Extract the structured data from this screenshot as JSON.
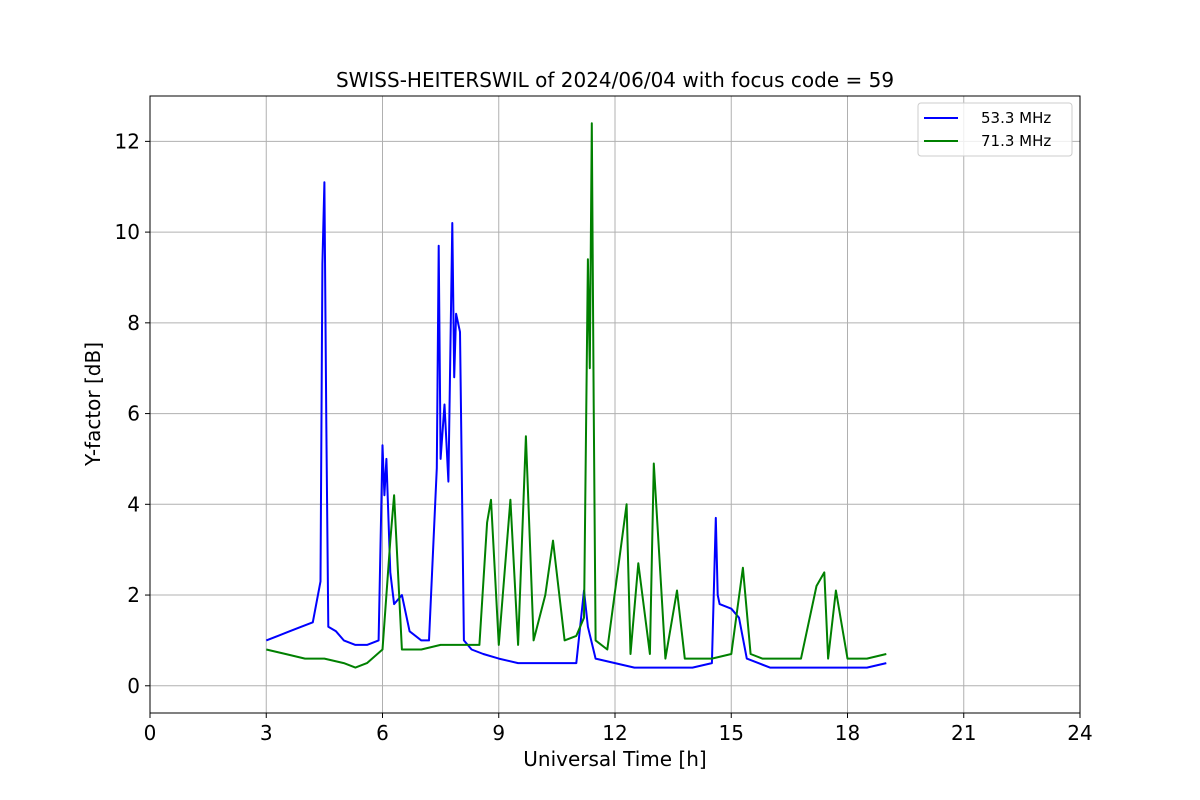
{
  "chart_data": {
    "type": "line",
    "title": "SWISS-HEITERSWIL of 2024/06/04 with focus code = 59",
    "xlabel": "Universal Time [h]",
    "ylabel": "Y-factor [dB]",
    "xlim": [
      0,
      24
    ],
    "ylim": [
      -0.6,
      13
    ],
    "xticks": [
      "0",
      "3",
      "6",
      "9",
      "12",
      "15",
      "18",
      "21",
      "24"
    ],
    "yticks": [
      "0",
      "2",
      "4",
      "6",
      "8",
      "10",
      "12"
    ],
    "grid": true,
    "legend_position": "top-right",
    "series": [
      {
        "name": "53.3 MHz",
        "color": "#0000ff",
        "x": [
          3.0,
          3.3,
          3.6,
          3.9,
          4.2,
          4.4,
          4.45,
          4.5,
          4.55,
          4.6,
          4.8,
          5.0,
          5.3,
          5.6,
          5.9,
          6.0,
          6.05,
          6.1,
          6.2,
          6.3,
          6.5,
          6.7,
          7.0,
          7.2,
          7.4,
          7.45,
          7.5,
          7.6,
          7.7,
          7.8,
          7.85,
          7.9,
          8.0,
          8.1,
          8.3,
          8.6,
          9.0,
          9.5,
          10.0,
          10.5,
          11.0,
          11.2,
          11.3,
          11.5,
          12.0,
          12.5,
          13.0,
          13.5,
          14.0,
          14.5,
          14.6,
          14.65,
          14.7,
          15.0,
          15.2,
          15.4,
          15.7,
          16.0,
          16.5,
          17.0,
          17.5,
          18.0,
          18.5,
          19.0
        ],
        "y": [
          1.0,
          1.1,
          1.2,
          1.3,
          1.4,
          2.3,
          9.3,
          11.1,
          5.8,
          1.3,
          1.2,
          1.0,
          0.9,
          0.9,
          1.0,
          5.3,
          4.2,
          5.0,
          2.5,
          1.8,
          2.0,
          1.2,
          1.0,
          1.0,
          4.8,
          9.7,
          5.0,
          6.2,
          4.5,
          10.2,
          6.8,
          8.2,
          7.8,
          1.0,
          0.8,
          0.7,
          0.6,
          0.5,
          0.5,
          0.5,
          0.5,
          2.1,
          1.3,
          0.6,
          0.5,
          0.4,
          0.4,
          0.4,
          0.4,
          0.5,
          3.7,
          2.0,
          1.8,
          1.7,
          1.5,
          0.6,
          0.5,
          0.4,
          0.4,
          0.4,
          0.4,
          0.4,
          0.4,
          0.5
        ]
      },
      {
        "name": "71.3 MHz",
        "color": "#008000",
        "x": [
          3.0,
          3.5,
          4.0,
          4.5,
          5.0,
          5.3,
          5.6,
          6.0,
          6.2,
          6.3,
          6.5,
          7.0,
          7.5,
          8.0,
          8.5,
          8.7,
          8.8,
          9.0,
          9.3,
          9.5,
          9.7,
          9.9,
          10.2,
          10.4,
          10.7,
          11.0,
          11.2,
          11.3,
          11.35,
          11.4,
          11.45,
          11.5,
          11.8,
          12.3,
          12.4,
          12.6,
          12.9,
          13.0,
          13.3,
          13.6,
          13.8,
          14.0,
          14.5,
          15.0,
          15.3,
          15.5,
          15.8,
          16.3,
          16.8,
          17.2,
          17.4,
          17.5,
          17.7,
          18.0,
          18.5,
          19.0
        ],
        "y": [
          0.8,
          0.7,
          0.6,
          0.6,
          0.5,
          0.4,
          0.5,
          0.8,
          3.2,
          4.2,
          0.8,
          0.8,
          0.9,
          0.9,
          0.9,
          3.6,
          4.1,
          0.9,
          4.1,
          0.9,
          5.5,
          1.0,
          2.0,
          3.2,
          1.0,
          1.1,
          1.5,
          9.4,
          7.0,
          12.4,
          6.2,
          1.0,
          0.8,
          4.0,
          0.7,
          2.7,
          0.7,
          4.9,
          0.6,
          2.1,
          0.6,
          0.6,
          0.6,
          0.7,
          2.6,
          0.7,
          0.6,
          0.6,
          0.6,
          2.2,
          2.5,
          0.6,
          2.1,
          0.6,
          0.6,
          0.7
        ]
      }
    ]
  }
}
